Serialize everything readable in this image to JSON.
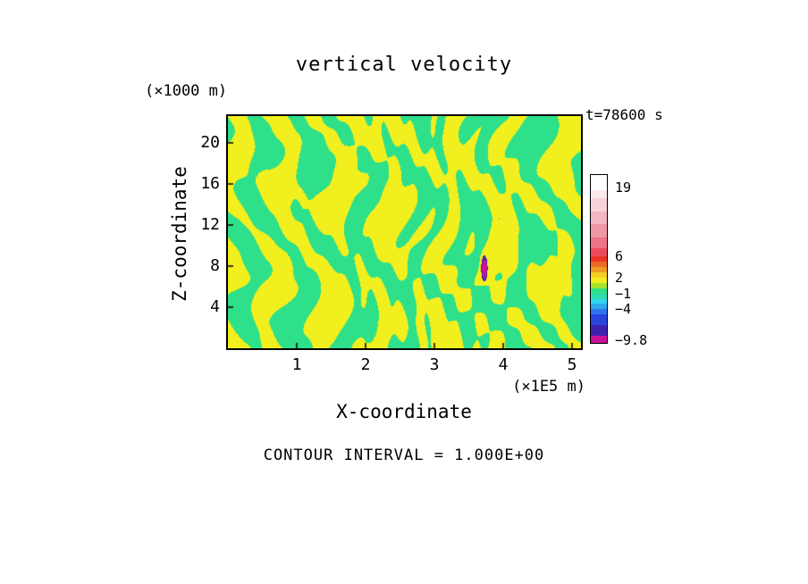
{
  "title": "vertical velocity",
  "time_label": "t=78600 s",
  "contour_note": "CONTOUR INTERVAL = 1.000E+00",
  "x_axis": {
    "label": "X-coordinate",
    "units": "(×1E5 m)"
  },
  "z_axis": {
    "label": "Z-coordinate",
    "units": "(×1000 m)"
  },
  "chart_data": {
    "type": "heatmap",
    "title": "vertical velocity",
    "xlabel": "X-coordinate",
    "ylabel": "Z-coordinate",
    "x_units": "(×1E5 m)",
    "z_units": "(×1000 m)",
    "time": "t=78600 s",
    "contour_interval": "CONTOUR INTERVAL = 1.000E+00",
    "x_range": [
      0,
      5.13
    ],
    "z_range": [
      0,
      22.6
    ],
    "x_ticks": [
      1,
      2,
      3,
      4,
      5
    ],
    "z_ticks": [
      4,
      8,
      12,
      16,
      20
    ],
    "grid": false,
    "legend_position": "right-colorbar",
    "field_description": "Filled contours of vertical velocity: irregular, mostly vertical alternating wave bands near 0 (yellow = weakly positive band, green = weakly negative band); band density increases near x=2.5-3.5; one narrow strong negative (magenta, ~ -9.8) streak near x=3.72, z=8.",
    "fill_colors": {
      "positive_band": "#f2ef1f",
      "negative_band": "#2ee08a",
      "anomaly_core": "#cc1199",
      "anomaly_edge": "#3d22b2"
    },
    "anomaly": {
      "x": 3.72,
      "z": 7.8
    },
    "colorbar": {
      "vmin": -10.5,
      "vmax": 21.5,
      "labels": [
        {
          "value": 19,
          "label": "19"
        },
        {
          "value": 6,
          "label": "6"
        },
        {
          "value": 2,
          "label": "2"
        },
        {
          "value": -1,
          "label": "−1"
        },
        {
          "value": -4,
          "label": "−4"
        },
        {
          "value": -9.8,
          "label": "−9.8"
        }
      ],
      "segments": [
        {
          "from": -10.5,
          "to": -9,
          "color": "#cc1199"
        },
        {
          "from": -9,
          "to": -7,
          "color": "#3d22b2"
        },
        {
          "from": -7,
          "to": -5,
          "color": "#2a44dd"
        },
        {
          "from": -5,
          "to": -4,
          "color": "#2d74ee"
        },
        {
          "from": -4,
          "to": -3,
          "color": "#2fa8ee"
        },
        {
          "from": -3,
          "to": -2,
          "color": "#2fd4ee"
        },
        {
          "from": -2,
          "to": -1,
          "color": "#2fdcae"
        },
        {
          "from": -1,
          "to": 0,
          "color": "#2ee08a"
        },
        {
          "from": 0,
          "to": 1,
          "color": "#a4e42a"
        },
        {
          "from": 1,
          "to": 2,
          "color": "#f2ef1f"
        },
        {
          "from": 2,
          "to": 3,
          "color": "#f2cf1f"
        },
        {
          "from": 3,
          "to": 4,
          "color": "#f09a22"
        },
        {
          "from": 4,
          "to": 5,
          "color": "#ee6a24"
        },
        {
          "from": 5,
          "to": 6,
          "color": "#ee3524"
        },
        {
          "from": 6,
          "to": 7.5,
          "color": "#ee4a5e"
        },
        {
          "from": 7.5,
          "to": 9.5,
          "color": "#ee7386"
        },
        {
          "from": 9.5,
          "to": 12,
          "color": "#f097a6"
        },
        {
          "from": 12,
          "to": 14.5,
          "color": "#f4b6c1"
        },
        {
          "from": 14.5,
          "to": 17,
          "color": "#f8d2d9"
        },
        {
          "from": 17,
          "to": 18.5,
          "color": "#fce9ec"
        },
        {
          "from": 18.5,
          "to": 21.5,
          "color": "#ffffff"
        }
      ]
    }
  }
}
